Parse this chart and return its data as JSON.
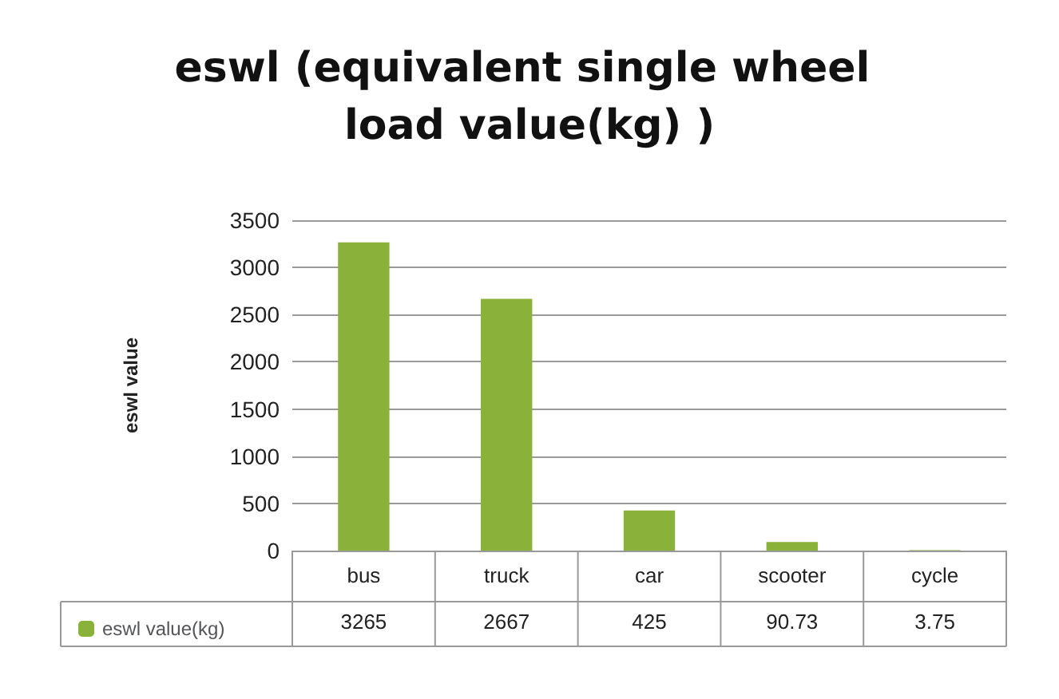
{
  "chart_data": {
    "type": "bar",
    "title": "eswl (equivalent single wheel load value(kg) )",
    "ylabel": "eswl value",
    "categories": [
      "bus",
      "truck",
      "car",
      "scooter",
      "cycle"
    ],
    "series": [
      {
        "name": "eswl value(kg)",
        "color": "#8ab23a",
        "values": [
          3265,
          2667,
          425,
          90.73,
          3.75
        ]
      }
    ],
    "ylim": [
      0,
      3500
    ],
    "yticks": [
      0,
      500,
      1000,
      1500,
      2000,
      2500,
      3000,
      3500
    ],
    "grid": "y",
    "legend": "bottom left",
    "data_labels": true
  }
}
